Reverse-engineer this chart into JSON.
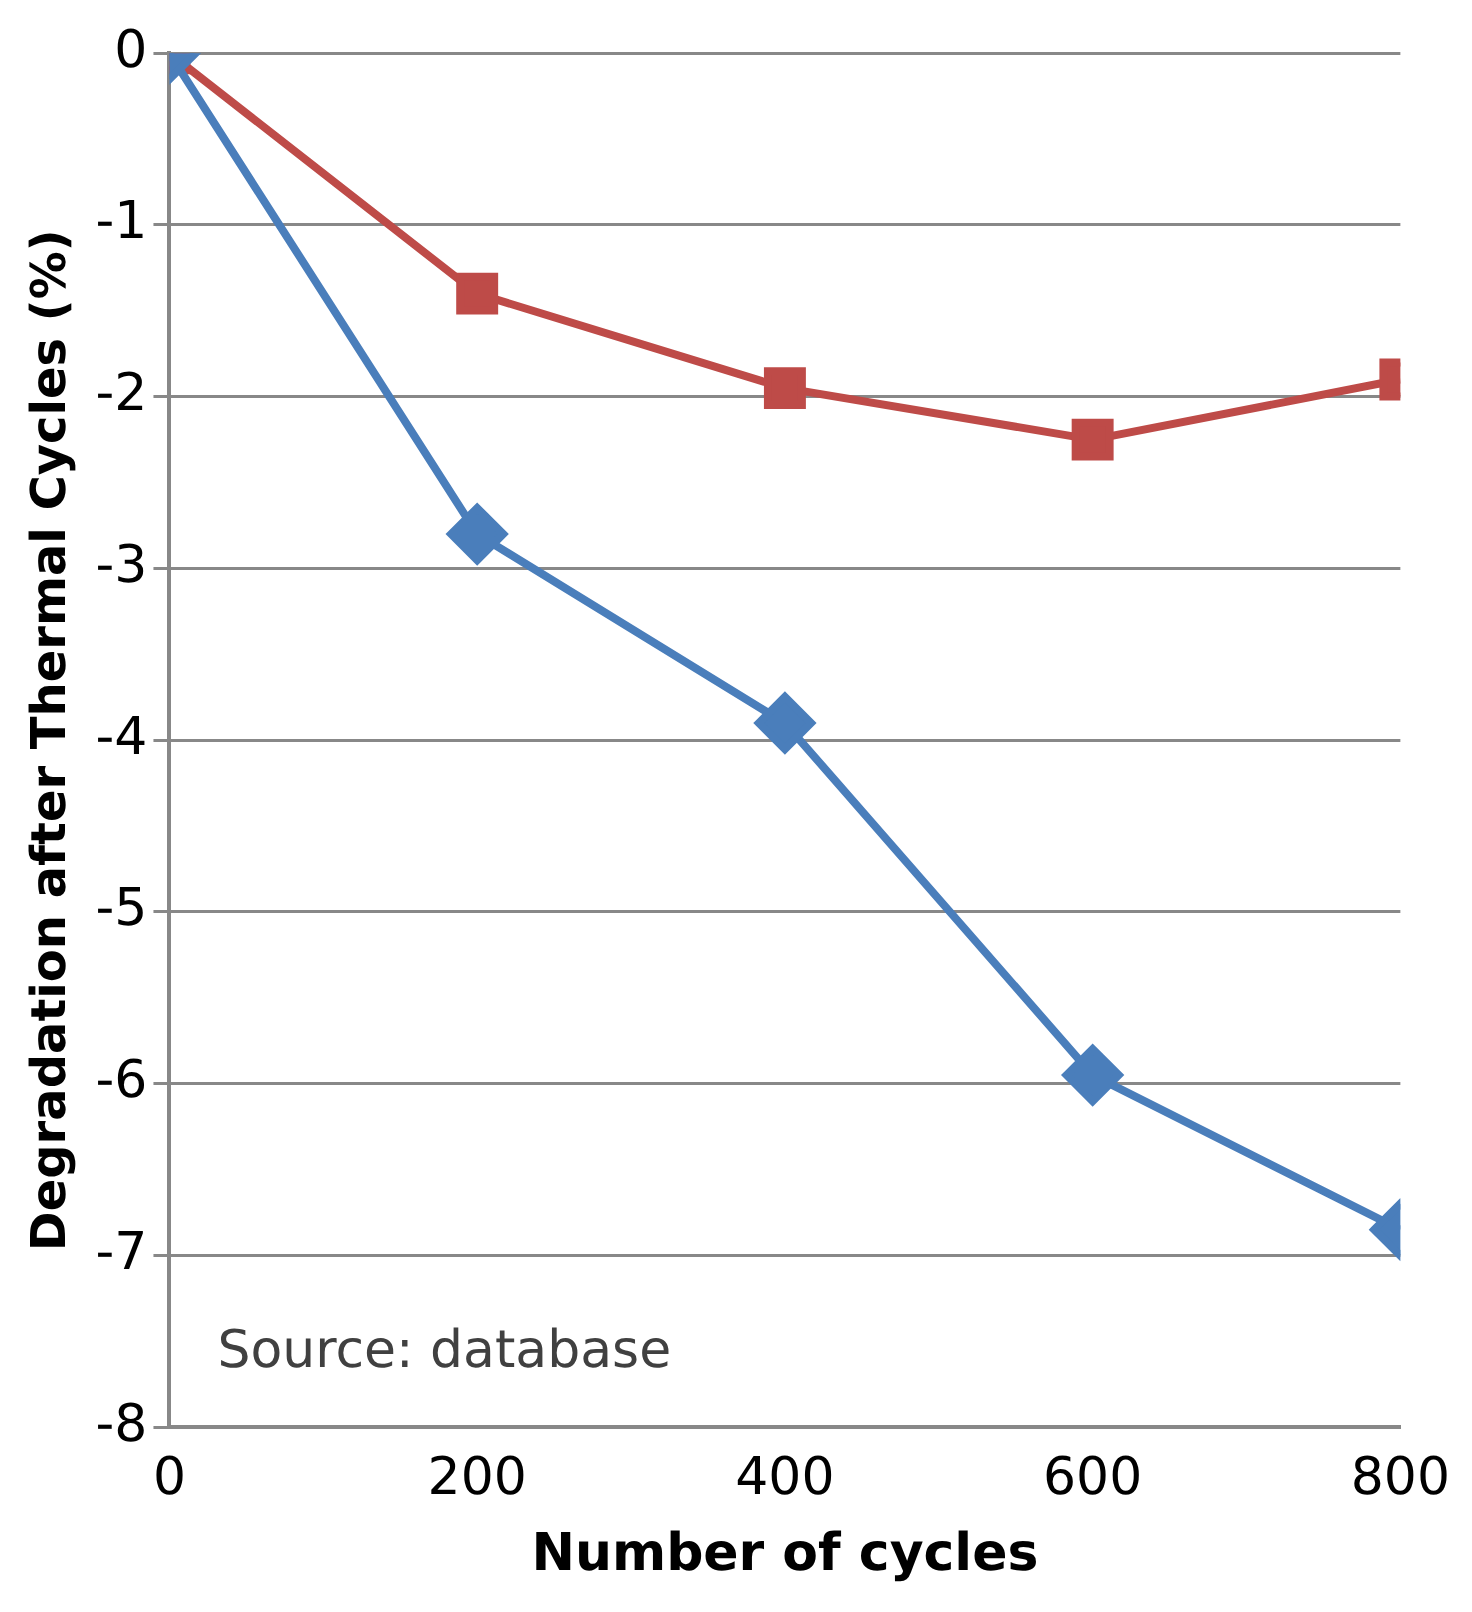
{
  "chart_data": {
    "type": "line",
    "xlabel": "Number of cycles",
    "ylabel": "Degradation after Thermal Cycles (%)",
    "x": [
      0,
      200,
      400,
      600,
      800
    ],
    "series": [
      {
        "color": "#4a7ebb",
        "marker": "diamond",
        "values": [
          0,
          -2.8,
          -3.9,
          -5.95,
          -6.85
        ]
      },
      {
        "color": "#be4b48",
        "marker": "square",
        "values": [
          0,
          -1.4,
          -1.95,
          -2.25,
          -1.9
        ]
      }
    ],
    "xlim": [
      0,
      800
    ],
    "xticks": [
      0,
      200,
      400,
      600,
      800
    ],
    "ylim": [
      -8,
      0
    ],
    "yticks": [
      -8,
      -7,
      -6,
      -5,
      -4,
      -3,
      -2,
      -1,
      0
    ],
    "grid": "y",
    "legend": false,
    "line_style": "solid",
    "annotations": [
      "Source: database"
    ]
  }
}
